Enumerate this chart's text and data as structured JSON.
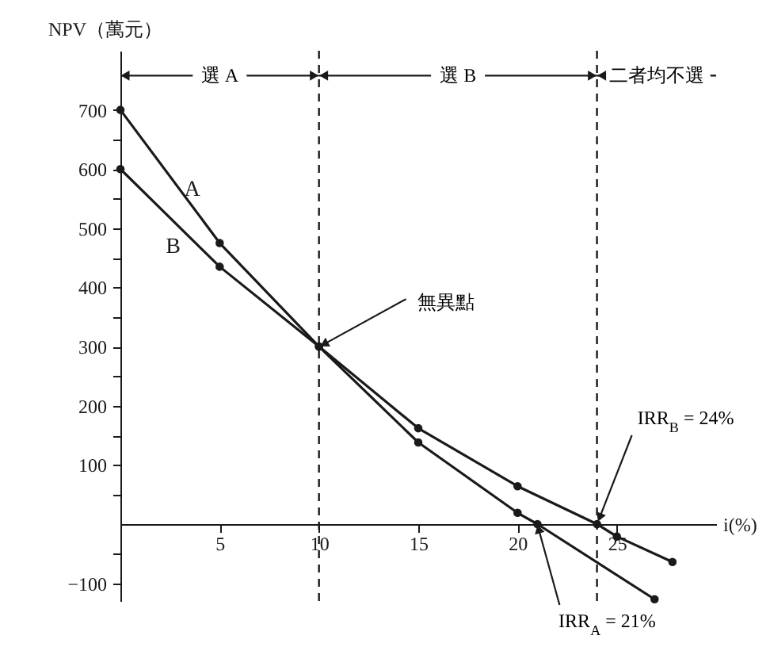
{
  "chart_data": {
    "type": "line",
    "xlabel": "i(%)",
    "ylabel": "NPV（萬元）",
    "xlim": [
      0,
      30
    ],
    "ylim": [
      -130,
      800
    ],
    "xticks": [
      5,
      10,
      15,
      20,
      25
    ],
    "yticks": [
      {
        "value": -100,
        "label": "−100"
      },
      {
        "value": -50,
        "label": null
      },
      {
        "value": 50,
        "label": null
      },
      100,
      {
        "value": 150,
        "label": null
      },
      200,
      {
        "value": 250,
        "label": null
      },
      300,
      {
        "value": 350,
        "label": null
      },
      400,
      {
        "value": 450,
        "label": null
      },
      500,
      {
        "value": 550,
        "label": null
      },
      600,
      {
        "value": 650,
        "label": null
      },
      700
    ],
    "series": [
      {
        "name": "A",
        "color": "#1a1a1a",
        "x": [
          0,
          5,
          10,
          15,
          20,
          21,
          26.9
        ],
        "values": [
          700,
          475,
          300,
          138,
          19,
          0,
          -127
        ]
      },
      {
        "name": "B",
        "color": "#1a1a1a",
        "x": [
          0,
          5,
          10,
          15,
          20,
          24,
          25,
          27.8
        ],
        "values": [
          600,
          435,
          300,
          162,
          64,
          0,
          -21,
          -64
        ]
      }
    ],
    "marker": "circle",
    "line_style": "solid",
    "grid": false,
    "ref_lines": [
      {
        "axis": "x",
        "value": 10,
        "color": "#1a1a1a",
        "line_style": "dashed"
      },
      {
        "axis": "x",
        "value": 24,
        "color": "#1a1a1a",
        "line_style": "dashed"
      }
    ],
    "annotations": [
      {
        "text": "選 A",
        "x": 10,
        "y": 758
      },
      {
        "text": "選 B",
        "x": 24,
        "y": 758
      },
      {
        "text": "二者均不選",
        "x": 24,
        "y": 758
      },
      {
        "text": "無異點",
        "x": 10,
        "y": 300
      },
      {
        "text": "IRR$_{B}$ = 24%",
        "x": 24,
        "y": 0
      },
      {
        "text": "IRR$_{A}$ = 21%",
        "x": 21,
        "y": 0
      }
    ]
  }
}
